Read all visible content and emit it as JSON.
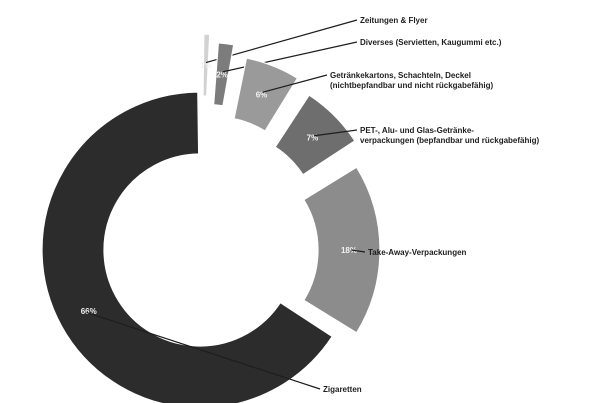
{
  "chart_data": {
    "type": "pie",
    "donut": true,
    "title": "",
    "legend": "none",
    "slices": [
      {
        "label": "Zeitungen & Flyer",
        "value": 1,
        "pct_label": "1%",
        "color": "#d2d2d2"
      },
      {
        "label": "Diverses (Servietten, Kaugummi etc.)",
        "value": 2,
        "pct_label": "2%",
        "color": "#7c7c7c"
      },
      {
        "label": [
          "Getränkekartons, Schachteln, Deckel",
          "(nichtbepfandbar und nicht rückgabefähig)"
        ],
        "value": 6,
        "pct_label": "6%",
        "color": "#9a9a9a"
      },
      {
        "label": [
          "PET-, Alu- und Glas-Getränke-",
          "verpackungen (bepfandbar und rückgabefähig)"
        ],
        "value": 7,
        "pct_label": "7%",
        "color": "#6e6e6e"
      },
      {
        "label": "Take-Away-Verpackungen",
        "value": 18,
        "pct_label": "18%",
        "color": "#8c8c8c"
      },
      {
        "label": "Zigaretten",
        "value": 66,
        "pct_label": "66%",
        "color": "#2c2c2c"
      }
    ]
  }
}
